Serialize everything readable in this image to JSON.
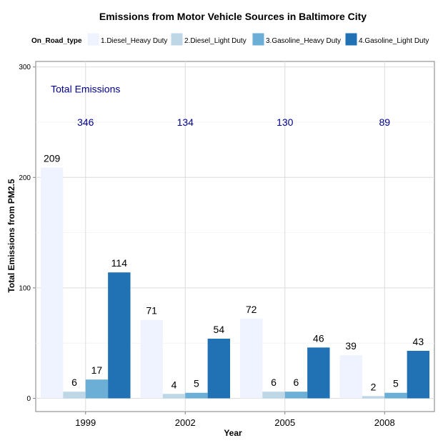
{
  "chart_data": {
    "type": "bar",
    "title": "Emissions from Motor Vehicle Sources in Baltimore City",
    "xlabel": "Year",
    "ylabel": "Total Emissions from PM2.5",
    "categories": [
      "1999",
      "2002",
      "2005",
      "2008"
    ],
    "ylim": [
      -12,
      305
    ],
    "yticks": [
      0,
      100,
      200,
      300
    ],
    "grid": true,
    "legend_title": "On_Road_type",
    "legend_position": "top",
    "series": [
      {
        "name": "1.Diesel_Heavy Duty",
        "color": "#EFF3FF",
        "values": [
          209,
          71,
          72,
          39
        ]
      },
      {
        "name": "2.Diesel_Light Duty",
        "color": "#BDD7E7",
        "values": [
          6,
          4,
          6,
          2
        ]
      },
      {
        "name": "3.Gasoline_Heavy Duty",
        "color": "#6BAED6",
        "values": [
          17,
          5,
          6,
          5
        ]
      },
      {
        "name": "4.Gasoline_Light Duty",
        "color": "#2171B5",
        "values": [
          114,
          54,
          46,
          43
        ]
      }
    ],
    "annotation": {
      "text": "Total Emissions",
      "x": "1999",
      "y": 280
    },
    "totals": {
      "values": [
        "346",
        "134",
        "130",
        "89"
      ],
      "y": 250
    }
  }
}
